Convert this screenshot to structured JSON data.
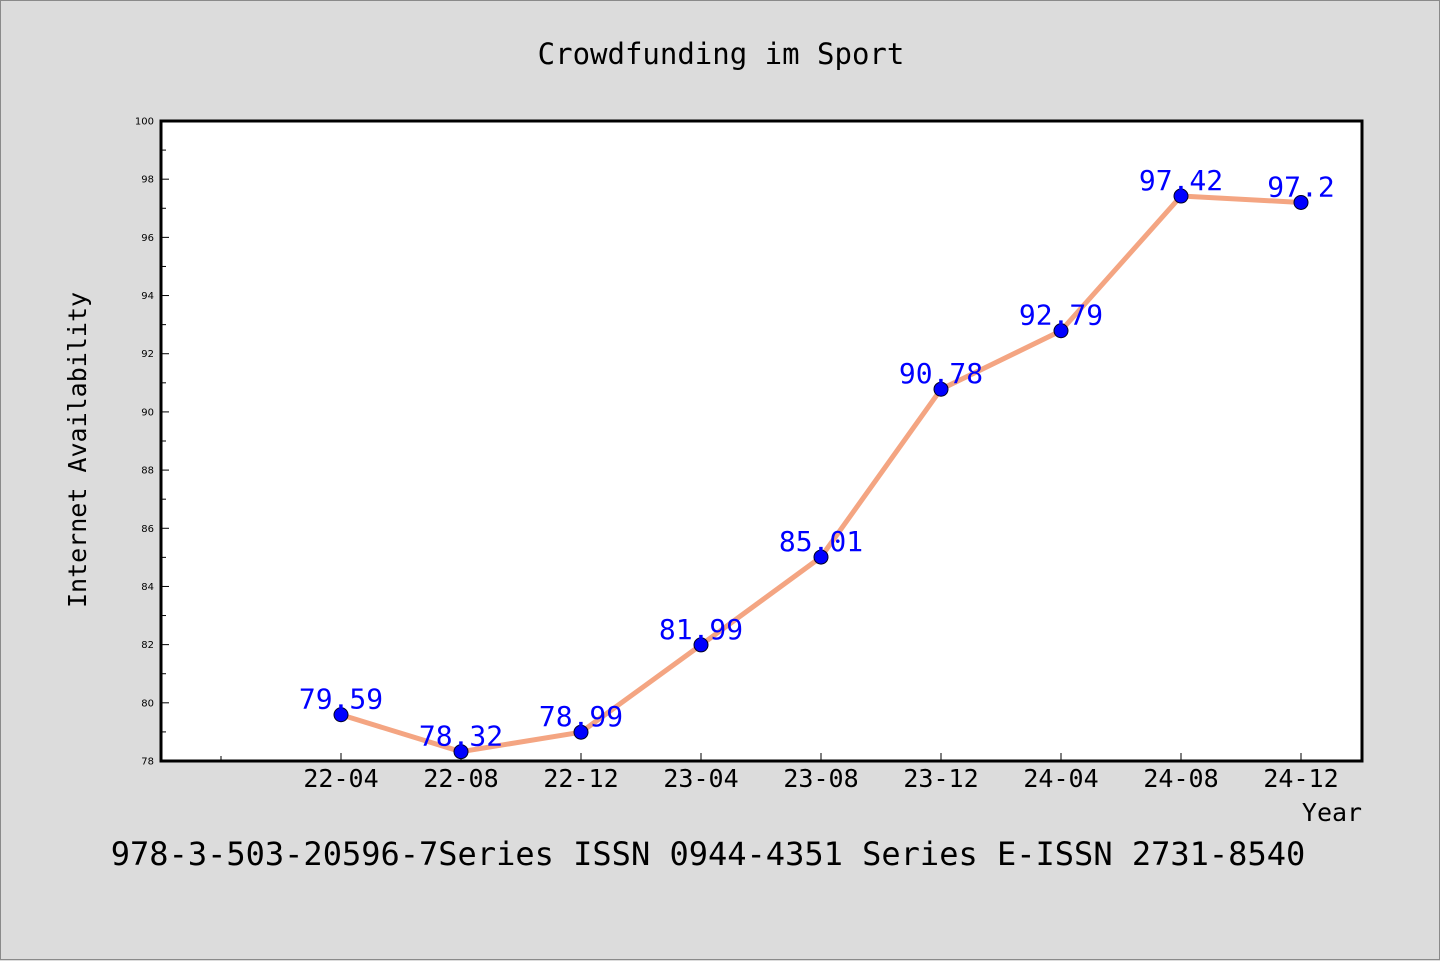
{
  "chart_data": {
    "type": "line",
    "title": "Crowdfunding im Sport",
    "xlabel": "Year",
    "ylabel": "Internet Availability",
    "categories": [
      "22-04",
      "22-08",
      "22-12",
      "23-04",
      "23-08",
      "23-12",
      "24-04",
      "24-08",
      "24-12"
    ],
    "series": [
      {
        "values": [
          79.59,
          78.32,
          78.99,
          81.99,
          85.01,
          90.78,
          92.79,
          97.42,
          97.2
        ],
        "labels": [
          "79.59",
          "78.32",
          "78.99",
          "81.99",
          "85.01",
          "90.78",
          "92.79",
          "97.42",
          "97.2"
        ],
        "line_color": "#f4a582",
        "marker_color": "#0000ff"
      }
    ],
    "ylim": [
      78,
      100
    ],
    "y_ticks": [
      "78",
      "80",
      "82",
      "84",
      "86",
      "88",
      "90",
      "92",
      "94",
      "96",
      "98",
      "100"
    ],
    "grid": false,
    "legend": "none",
    "background": "#dcdcdc",
    "plot_background": "#ffffff"
  },
  "footer": {
    "text": "978-3-503-20596-7Series ISSN 0944-4351 Series E-ISSN 2731-8540"
  }
}
